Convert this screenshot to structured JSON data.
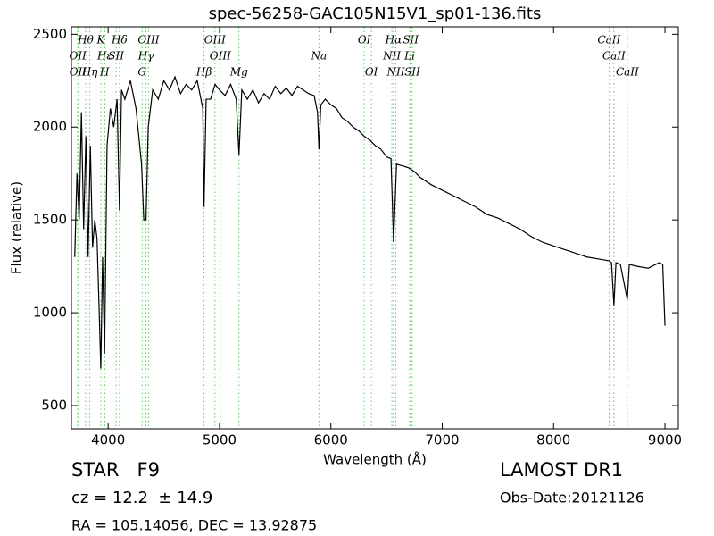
{
  "chart_data": {
    "type": "line",
    "title": "spec-56258-GAC105N15V1_sp01-136.fits",
    "x_label": "Wavelength (Å)",
    "y_label": "Flux (relative)",
    "xlim": [
      3670,
      9120
    ],
    "ylim": [
      375,
      2540
    ],
    "xticks": [
      4000,
      5000,
      6000,
      7000,
      8000,
      9000
    ],
    "yticks": [
      500,
      1000,
      1500,
      2000,
      2500
    ],
    "color": "#000000",
    "marker_color": "#5cc85c",
    "x": [
      3700,
      3720,
      3740,
      3760,
      3780,
      3800,
      3820,
      3840,
      3860,
      3880,
      3900,
      3920,
      3934,
      3950,
      3968,
      3990,
      4020,
      4050,
      4080,
      4102,
      4120,
      4150,
      4200,
      4250,
      4300,
      4320,
      4340,
      4360,
      4400,
      4450,
      4500,
      4550,
      4600,
      4650,
      4700,
      4750,
      4800,
      4850,
      4861,
      4880,
      4920,
      4960,
      5000,
      5050,
      5100,
      5150,
      5175,
      5200,
      5250,
      5300,
      5350,
      5400,
      5450,
      5500,
      5550,
      5600,
      5650,
      5700,
      5750,
      5800,
      5850,
      5880,
      5893,
      5910,
      5950,
      6000,
      6050,
      6100,
      6150,
      6200,
      6250,
      6300,
      6350,
      6400,
      6450,
      6500,
      6540,
      6563,
      6590,
      6650,
      6700,
      6750,
      6800,
      6900,
      7000,
      7100,
      7200,
      7300,
      7400,
      7500,
      7600,
      7700,
      7800,
      7900,
      8000,
      8100,
      8200,
      8300,
      8400,
      8498,
      8520,
      8542,
      8560,
      8600,
      8662,
      8680,
      8750,
      8850,
      8950,
      8980,
      9000
    ],
    "values": [
      1300,
      1750,
      1500,
      2080,
      1450,
      1950,
      1300,
      1900,
      1350,
      1500,
      1400,
      1000,
      700,
      1300,
      780,
      1900,
      2100,
      2000,
      2150,
      1550,
      2200,
      2150,
      2250,
      2100,
      1800,
      1500,
      1500,
      2000,
      2200,
      2150,
      2250,
      2200,
      2270,
      2180,
      2230,
      2200,
      2250,
      2100,
      1570,
      2150,
      2150,
      2230,
      2200,
      2170,
      2230,
      2150,
      1850,
      2200,
      2150,
      2200,
      2130,
      2180,
      2150,
      2220,
      2180,
      2210,
      2170,
      2220,
      2200,
      2180,
      2170,
      2080,
      1880,
      2120,
      2150,
      2120,
      2100,
      2050,
      2030,
      2000,
      1980,
      1950,
      1930,
      1900,
      1880,
      1840,
      1830,
      1380,
      1800,
      1790,
      1780,
      1760,
      1730,
      1690,
      1660,
      1630,
      1600,
      1570,
      1530,
      1510,
      1480,
      1450,
      1410,
      1380,
      1360,
      1340,
      1320,
      1300,
      1290,
      1280,
      1270,
      1040,
      1270,
      1260,
      1070,
      1260,
      1250,
      1240,
      1270,
      1260,
      930
    ],
    "annotation_rows": [
      [
        {
          "label": "Hθ",
          "x": 3798
        },
        {
          "label": "K",
          "x": 3934
        },
        {
          "label": "Hδ",
          "x": 4102
        },
        {
          "label": "OIII",
          "x": 4363
        },
        {
          "label": "OIII",
          "x": 4959
        },
        {
          "label": "OI",
          "x": 6300
        },
        {
          "label": "Hα",
          "x": 6563
        },
        {
          "label": "SII",
          "x": 6717
        },
        {
          "label": "CaII",
          "x": 8498
        }
      ],
      [
        {
          "label": "OII",
          "x": 3727
        },
        {
          "label": "Hε",
          "x": 3970
        },
        {
          "label": "SII",
          "x": 4072
        },
        {
          "label": "Hγ",
          "x": 4340
        },
        {
          "label": "OIII",
          "x": 5007
        },
        {
          "label": "Na",
          "x": 5893
        },
        {
          "label": "NII",
          "x": 6548
        },
        {
          "label": "Li",
          "x": 6708
        },
        {
          "label": "CaII",
          "x": 8542
        }
      ],
      [
        {
          "label": "OII",
          "x": 3729
        },
        {
          "label": "Hη",
          "x": 3835
        },
        {
          "label": "H",
          "x": 3968
        },
        {
          "label": "G",
          "x": 4305
        },
        {
          "label": "Hβ",
          "x": 4861
        },
        {
          "label": "Mg",
          "x": 5175
        },
        {
          "label": "OI",
          "x": 6364
        },
        {
          "label": "NII",
          "x": 6583
        },
        {
          "label": "SII",
          "x": 6731
        },
        {
          "label": "CaII",
          "x": 8662
        }
      ]
    ],
    "footer": {
      "object_class": "STAR   F9",
      "redshift": "cz = 12.2  ± 14.9",
      "coordinates": "RA = 105.14056, DEC = 13.92875",
      "survey": "LAMOST DR1",
      "obs_date": "Obs-Date:20121126"
    }
  }
}
